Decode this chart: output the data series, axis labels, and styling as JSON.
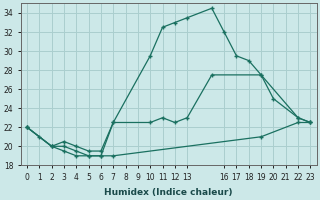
{
  "xlabel": "Humidex (Indice chaleur)",
  "bg_color": "#cce8e8",
  "grid_color": "#aacece",
  "line_color": "#1a7060",
  "xlim": [
    -0.5,
    23.5
  ],
  "ylim": [
    18,
    35
  ],
  "xticks": [
    0,
    1,
    2,
    3,
    4,
    5,
    6,
    7,
    8,
    9,
    10,
    11,
    12,
    13,
    16,
    17,
    18,
    19,
    20,
    21,
    22,
    23
  ],
  "yticks": [
    18,
    20,
    22,
    24,
    26,
    28,
    30,
    32,
    34
  ],
  "series1_x": [
    0,
    1,
    2,
    3,
    4,
    5,
    6,
    7,
    10,
    11,
    12,
    13,
    15,
    16,
    17,
    18,
    19,
    20,
    22,
    23
  ],
  "series1_y": [
    22,
    21,
    20,
    19.5,
    19,
    19,
    19,
    22.5,
    29.5,
    32.5,
    33,
    33.5,
    34.5,
    32,
    29.5,
    29,
    27.5,
    25,
    23,
    22.5
  ],
  "series2_x": [
    0,
    2,
    3,
    4,
    5,
    6,
    7,
    10,
    11,
    12,
    13,
    15,
    19,
    22,
    23
  ],
  "series2_y": [
    22,
    20,
    20.5,
    20,
    19.5,
    19.5,
    22.5,
    22.5,
    23,
    22.5,
    23,
    27.5,
    27.5,
    23,
    22.5
  ],
  "series3_x": [
    0,
    2,
    3,
    4,
    5,
    6,
    7,
    19,
    22,
    23
  ],
  "series3_y": [
    22,
    20,
    20,
    19.5,
    19,
    19,
    19,
    21,
    22.5,
    22.5
  ]
}
